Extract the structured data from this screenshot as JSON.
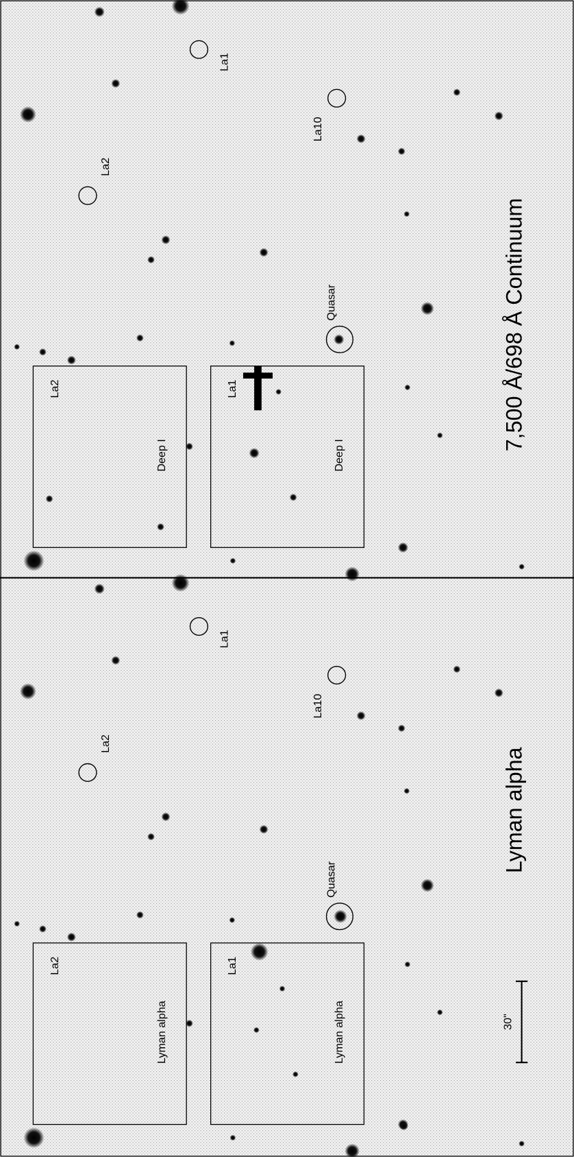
{
  "panels": [
    {
      "title": "7,500 Å/698 Å Continuum",
      "sources": {
        "la1": "La1",
        "la10": "La10",
        "la2": "La2",
        "quasar": "Quasar"
      },
      "insets": [
        {
          "label": "La2",
          "filter": "Deep I"
        },
        {
          "label": "La1",
          "filter": "Deep I"
        }
      ]
    },
    {
      "title": "Lyman alpha",
      "sources": {
        "la1": "La1",
        "la10": "La10",
        "la2": "La2",
        "quasar": "Quasar"
      },
      "insets": [
        {
          "label": "La2",
          "filter": "Lyman alpha"
        },
        {
          "label": "La1",
          "filter": "Lyman alpha"
        }
      ],
      "scale_bar": "30\""
    }
  ]
}
